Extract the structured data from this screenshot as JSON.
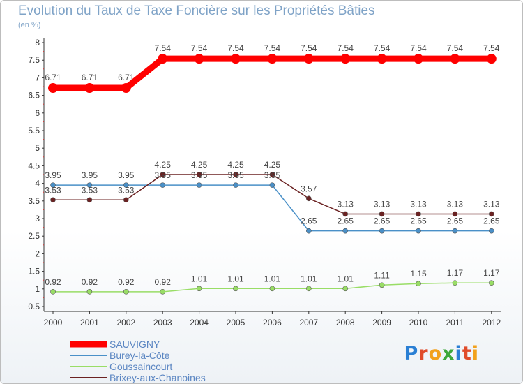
{
  "title": "Evolution du Taux de Taxe Foncière sur les Propriétés Bâties",
  "unit_label": "(en %)",
  "brand": {
    "text": "Proxiti",
    "colors": [
      "#2a7fd4",
      "#e04b2a",
      "#f2a11c",
      "#3ea83a",
      "#2a7fd4",
      "#e04b2a",
      "#f2a11c"
    ]
  },
  "chart_data": {
    "type": "line",
    "title": "Evolution du Taux de Taxe Foncière sur les Propriétés Bâties",
    "ylabel": "(en %)",
    "xlabel": "",
    "x": [
      "2000",
      "2001",
      "2002",
      "2003",
      "2004",
      "2005",
      "2006",
      "2007",
      "2008",
      "2009",
      "2010",
      "2011",
      "2012"
    ],
    "ylim": [
      0.5,
      8
    ],
    "yticks": [
      "0.5",
      "1",
      "1.5",
      "2",
      "2.5",
      "3",
      "3.5",
      "4",
      "4.5",
      "5",
      "5.5",
      "6",
      "6.5",
      "7",
      "7.5",
      "8"
    ],
    "grid": false,
    "legend_position": "bottom-left",
    "series": [
      {
        "name": "SAUVIGNY",
        "color": "#ff0000",
        "values": [
          6.71,
          6.71,
          6.71,
          7.54,
          7.54,
          7.54,
          7.54,
          7.54,
          7.54,
          7.54,
          7.54,
          7.54,
          7.54
        ],
        "labels": [
          "6.71",
          "6.71",
          "6.71",
          "7.54",
          "7.54",
          "7.54",
          "7.54",
          "7.54",
          "7.54",
          "7.54",
          "7.54",
          "7.54",
          "7.54"
        ]
      },
      {
        "name": "Burey-la-Côte",
        "color": "#4a90c8",
        "values": [
          3.95,
          3.95,
          3.95,
          3.95,
          3.95,
          3.95,
          3.95,
          2.65,
          2.65,
          2.65,
          2.65,
          2.65,
          2.65
        ],
        "labels": [
          "3.95",
          "3.95",
          "3.95",
          "3.95",
          "3.95",
          "3.95",
          "3.95",
          "2.65",
          "2.65",
          "2.65",
          "2.65",
          "2.65",
          "2.65"
        ]
      },
      {
        "name": "Goussaincourt",
        "color": "#99dd66",
        "values": [
          0.92,
          0.92,
          0.92,
          0.92,
          1.01,
          1.01,
          1.01,
          1.01,
          1.01,
          1.11,
          1.15,
          1.17,
          1.17
        ],
        "labels": [
          "0.92",
          "0.92",
          "0.92",
          "0.92",
          "1.01",
          "1.01",
          "1.01",
          "1.01",
          "1.01",
          "1.11",
          "1.15",
          "1.17",
          "1.17"
        ]
      },
      {
        "name": "Brixey-aux-Chanoines",
        "color": "#6b2222",
        "values": [
          3.53,
          3.53,
          3.53,
          4.25,
          4.25,
          4.25,
          4.25,
          3.57,
          3.13,
          3.13,
          3.13,
          3.13,
          3.13
        ],
        "labels": [
          "3.53",
          "3.53",
          "3.53",
          "4.25",
          "4.25",
          "4.25",
          "4.25",
          "3.57",
          "3.13",
          "3.13",
          "3.13",
          "3.13",
          "3.13"
        ]
      }
    ]
  }
}
